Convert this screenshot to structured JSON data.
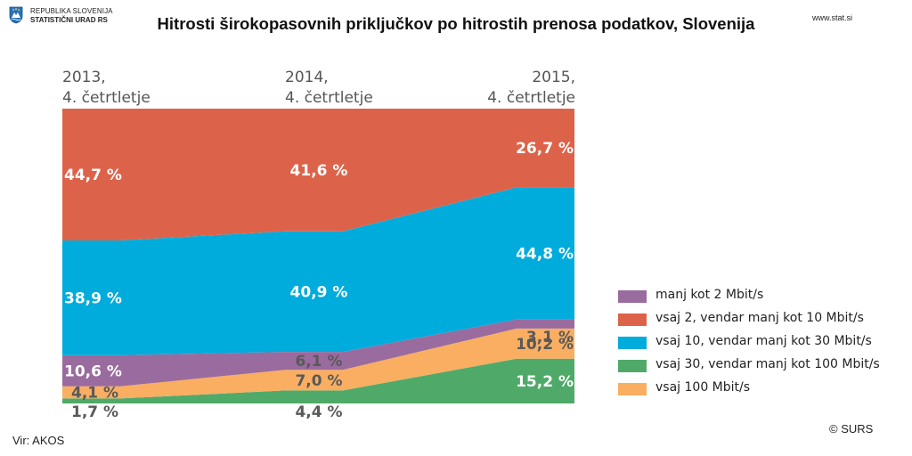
{
  "header": {
    "logo_line1": "REPUBLIKA SLOVENIJA",
    "logo_line2": "STATISTIČNI URAD RS",
    "site": "www.stat.si"
  },
  "colors": {
    "purple": "#9A6B9E",
    "red": "#DC634A",
    "blue": "#00ACDC",
    "green": "#4FAA69",
    "orange": "#F9AE62"
  },
  "chart_data": {
    "type": "area",
    "title": "Hitrosti širokopasovnih priključkov po hitrostih prenosa podatkov, Slovenija",
    "categories": [
      {
        "line1": "2013,",
        "line2": "4. četrtletje"
      },
      {
        "line1": "2014,",
        "line2": "4. četrtletje"
      },
      {
        "line1": "2015,",
        "line2": "4. četrtletje"
      }
    ],
    "stack_order": [
      "green",
      "orange",
      "purple",
      "blue",
      "red"
    ],
    "series": [
      {
        "key": "purple",
        "name": "manj kot 2 Mbit/s",
        "values": [
          10.6,
          6.1,
          3.1
        ],
        "labels": [
          "10,6 %",
          "6,1 %",
          "3,1 %"
        ]
      },
      {
        "key": "red",
        "name": "vsaj 2, vendar manj kot 10 Mbit/s",
        "values": [
          44.7,
          41.6,
          26.7
        ],
        "labels": [
          "44,7 %",
          "41,6 %",
          "26,7 %"
        ]
      },
      {
        "key": "blue",
        "name": "vsaj 10, vendar manj kot 30 Mbit/s",
        "values": [
          38.9,
          40.9,
          44.8
        ],
        "labels": [
          "38,9 %",
          "40,9 %",
          "44,8 %"
        ]
      },
      {
        "key": "green",
        "name": "vsaj 30, vendar manj kot 100 Mbit/s",
        "values": [
          1.7,
          4.4,
          15.2
        ],
        "labels": [
          "1,7 %",
          "4,4 %",
          "15,2 %"
        ]
      },
      {
        "key": "orange",
        "name": "vsaj 100 Mbit/s",
        "values": [
          4.1,
          7.0,
          10.2
        ],
        "labels": [
          "4,1 %",
          "7,0 %",
          "10,2 %"
        ]
      }
    ],
    "ylim": [
      0,
      100
    ],
    "source": "Vir: AKOS",
    "copyright": "© SURS"
  }
}
